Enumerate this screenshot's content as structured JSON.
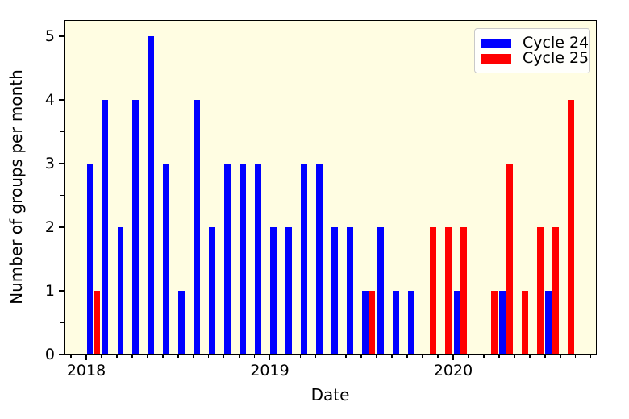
{
  "figure": {
    "background": "#ffffff"
  },
  "chart_data": {
    "type": "bar",
    "title": "",
    "xlabel": "Date",
    "ylabel": "Number of groups per month",
    "plot_background": "#fffde2",
    "grid": false,
    "x_axis": {
      "major_tick_labels": [
        "2018",
        "2019",
        "2020"
      ],
      "minor_tick_interval": "1 month",
      "xlim_note": "mid-Nov 2017 to early-Oct 2020"
    },
    "y_axis": {
      "ticks": [
        "0",
        "1",
        "2",
        "3",
        "4",
        "5"
      ],
      "minor_tick_interval": 0.5,
      "ylim": [
        0,
        5.25
      ]
    },
    "legend": {
      "position": "upper right",
      "entries": [
        "Cycle 24",
        "Cycle 25"
      ]
    },
    "categories": [
      "2018-01",
      "2018-02",
      "2018-03",
      "2018-04",
      "2018-05",
      "2018-06",
      "2018-07",
      "2018-08",
      "2018-09",
      "2018-10",
      "2018-11",
      "2018-12",
      "2019-01",
      "2019-02",
      "2019-03",
      "2019-04",
      "2019-05",
      "2019-06",
      "2019-07",
      "2019-08",
      "2019-09",
      "2019-10",
      "2019-11",
      "2019-12",
      "2020-01",
      "2020-02",
      "2020-03",
      "2020-04",
      "2020-05",
      "2020-06",
      "2020-07",
      "2020-08"
    ],
    "series": [
      {
        "name": "Cycle 24",
        "color": "#0000ff",
        "values": [
          3,
          4,
          2,
          4,
          5,
          3,
          1,
          4,
          2,
          3,
          3,
          3,
          2,
          2,
          3,
          3,
          2,
          2,
          1,
          2,
          1,
          1,
          null,
          null,
          1,
          null,
          null,
          1,
          null,
          null,
          1,
          null
        ]
      },
      {
        "name": "Cycle 25",
        "color": "#ff0000",
        "values": [
          1,
          null,
          null,
          null,
          null,
          null,
          null,
          null,
          null,
          null,
          null,
          null,
          null,
          null,
          null,
          null,
          null,
          null,
          1,
          null,
          null,
          null,
          2,
          2,
          2,
          null,
          1,
          3,
          1,
          2,
          2,
          4
        ]
      }
    ]
  }
}
